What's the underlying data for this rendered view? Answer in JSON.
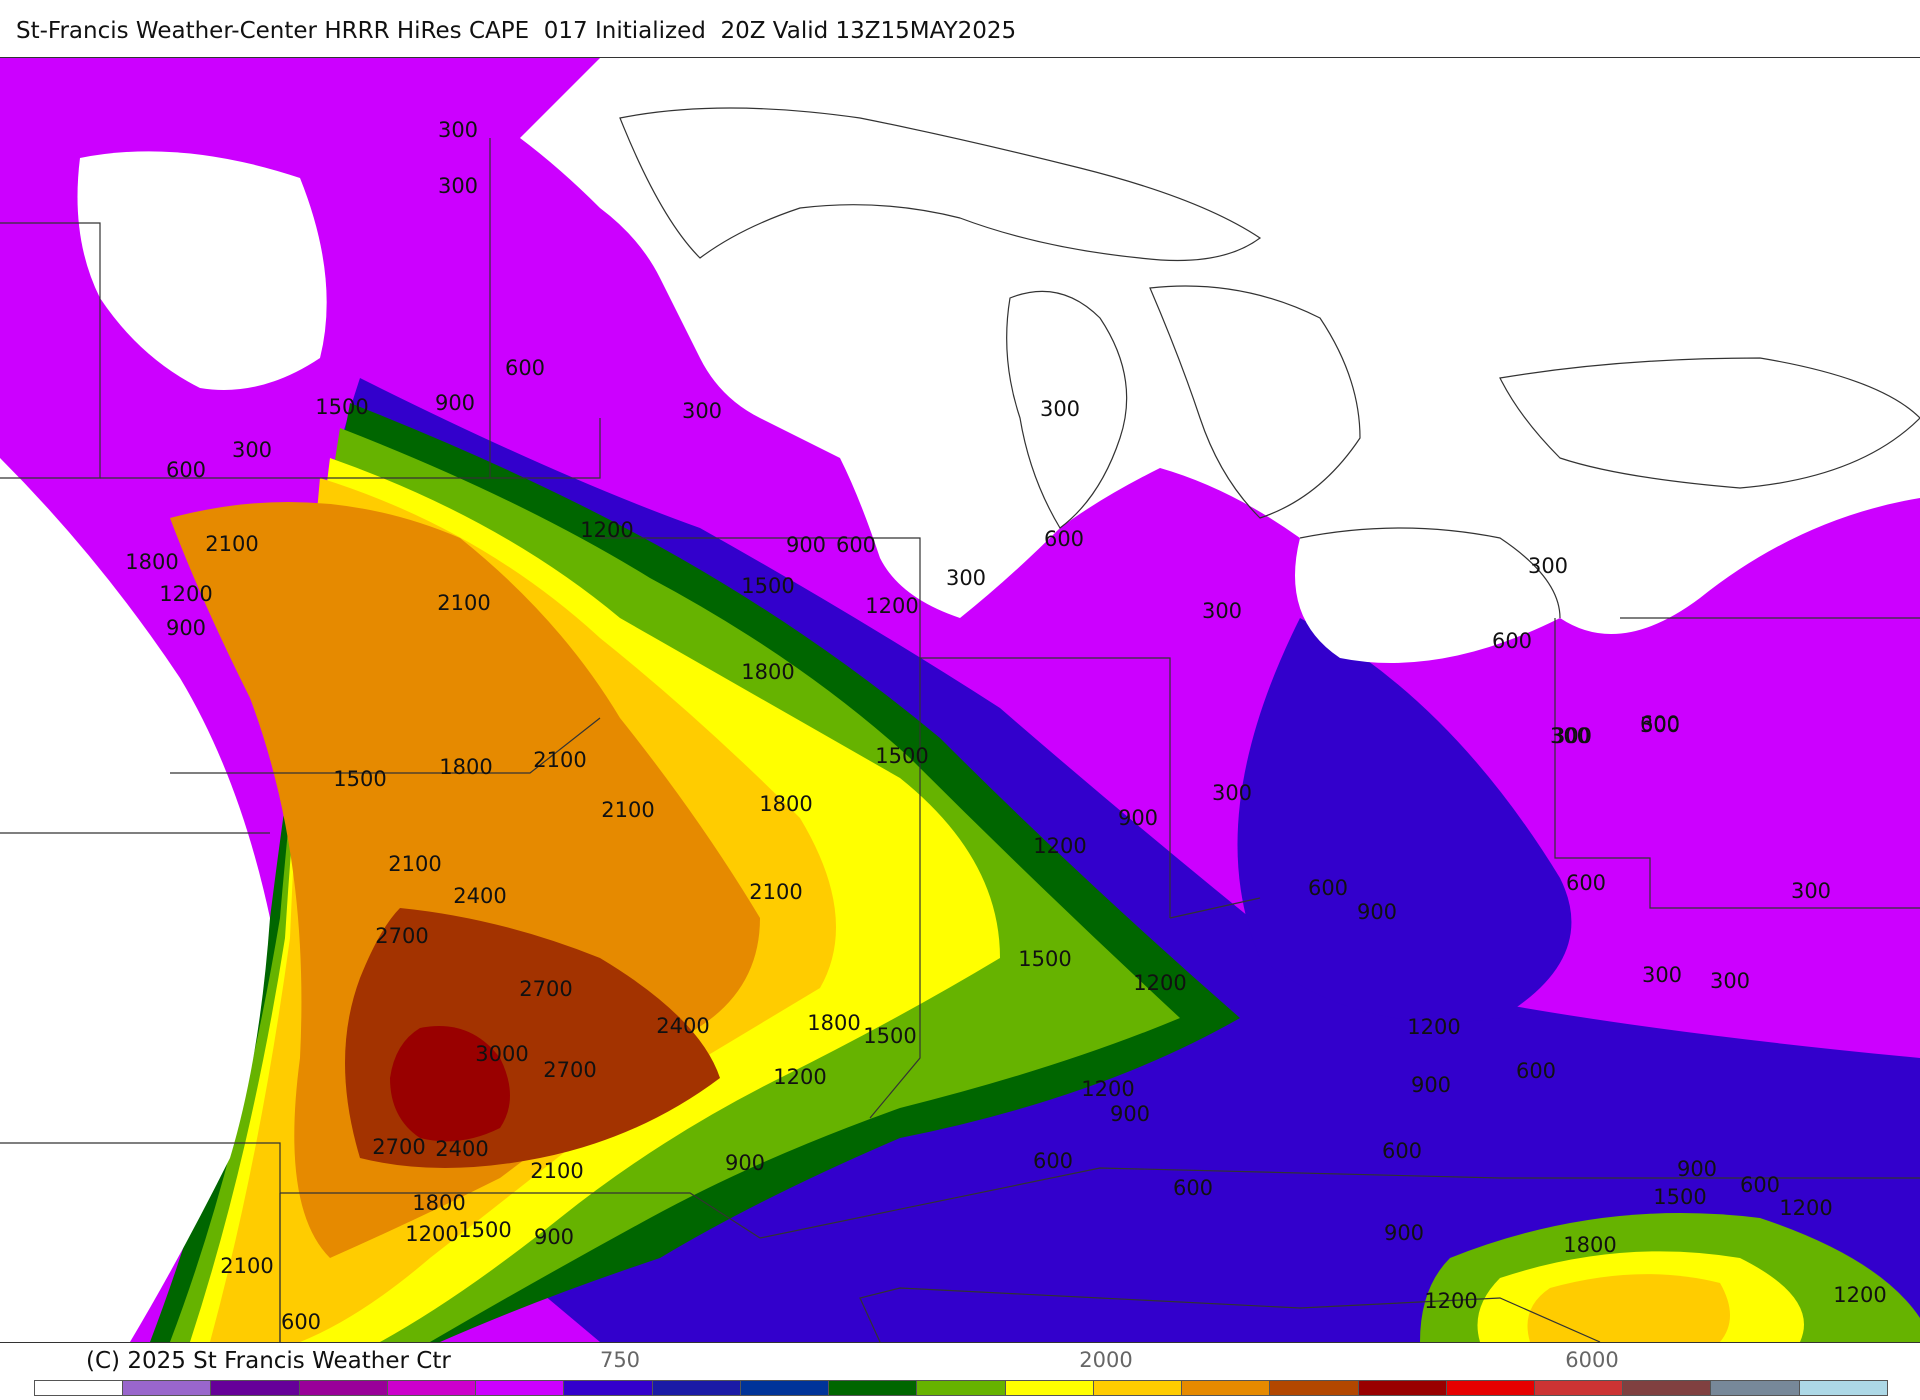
{
  "title": "St-Francis Weather-Center HRRR HiRes CAPE  017 Initialized  20Z Valid 13Z15MAY2025",
  "copyright": "(C) 2025 St Francis Weather Ctr",
  "palette": {
    "c0": "#ffffff",
    "c150": "#9966cc",
    "c300": "#cc00ff",
    "c600": "#3300cc",
    "c900": "#1a1aa6",
    "c1200": "#006600",
    "c1500": "#66b300",
    "c1800": "#ffff00",
    "c2100": "#ffcc00",
    "c2400": "#e68a00",
    "c2700": "#a33300",
    "c3000": "#990000",
    "land_line": "#333333",
    "lake": "#ffffff"
  },
  "colorbar": {
    "colors": [
      "#ffffff",
      "#9966cc",
      "#660099",
      "#990099",
      "#cc00cc",
      "#cc00ff",
      "#3300cc",
      "#1a1aa6",
      "#003399",
      "#006600",
      "#66b300",
      "#ffff00",
      "#ffcc00",
      "#e68a00",
      "#b34700",
      "#990000",
      "#e60000",
      "#cc3333",
      "#804040",
      "#778899",
      "#add8e6"
    ],
    "tick_labels": [
      "750",
      "2000",
      "6000"
    ]
  },
  "contour_labels": [
    {
      "v": "300"
    },
    {
      "v": "300"
    },
    {
      "v": "600"
    },
    {
      "v": "900"
    },
    {
      "v": "1500"
    },
    {
      "v": "300"
    },
    {
      "v": "600"
    },
    {
      "v": "300"
    },
    {
      "v": "2100"
    },
    {
      "v": "1800"
    },
    {
      "v": "1200"
    },
    {
      "v": "900"
    },
    {
      "v": "2100"
    },
    {
      "v": "1200"
    },
    {
      "v": "900"
    },
    {
      "v": "600"
    },
    {
      "v": "1500"
    },
    {
      "v": "1200"
    },
    {
      "v": "300"
    },
    {
      "v": "300"
    },
    {
      "v": "600"
    },
    {
      "v": "300"
    },
    {
      "v": "1800"
    },
    {
      "v": "300"
    },
    {
      "v": "600"
    },
    {
      "v": "1500"
    },
    {
      "v": "2100"
    },
    {
      "v": "1800"
    },
    {
      "v": "300"
    },
    {
      "v": "600"
    },
    {
      "v": "1500"
    },
    {
      "v": "2100"
    },
    {
      "v": "1800"
    },
    {
      "v": "300"
    },
    {
      "v": "300"
    },
    {
      "v": "2100"
    },
    {
      "v": "2400"
    },
    {
      "v": "900"
    },
    {
      "v": "1200"
    },
    {
      "v": "2100"
    },
    {
      "v": "600"
    },
    {
      "v": "900"
    },
    {
      "v": "300"
    },
    {
      "v": "600"
    },
    {
      "v": "300"
    },
    {
      "v": "2700"
    },
    {
      "v": "2700"
    },
    {
      "v": "1500"
    },
    {
      "v": "1200"
    },
    {
      "v": "300"
    },
    {
      "v": "300"
    },
    {
      "v": "2400"
    },
    {
      "v": "1800"
    },
    {
      "v": "1500"
    },
    {
      "v": "1200"
    },
    {
      "v": "3000"
    },
    {
      "v": "2700"
    },
    {
      "v": "1200"
    },
    {
      "v": "900"
    },
    {
      "v": "600"
    },
    {
      "v": "1200"
    },
    {
      "v": "900"
    },
    {
      "v": "2700"
    },
    {
      "v": "2400"
    },
    {
      "v": "900"
    },
    {
      "v": "600"
    },
    {
      "v": "600"
    },
    {
      "v": "600"
    },
    {
      "v": "900"
    },
    {
      "v": "2100"
    },
    {
      "v": "600"
    },
    {
      "v": "1800"
    },
    {
      "v": "1500"
    },
    {
      "v": "1500"
    },
    {
      "v": "1200"
    },
    {
      "v": "900"
    },
    {
      "v": "1800"
    },
    {
      "v": "900"
    },
    {
      "v": "2100"
    },
    {
      "v": "1200"
    },
    {
      "v": "1200"
    },
    {
      "v": "600"
    },
    {
      "v": "1200"
    }
  ]
}
